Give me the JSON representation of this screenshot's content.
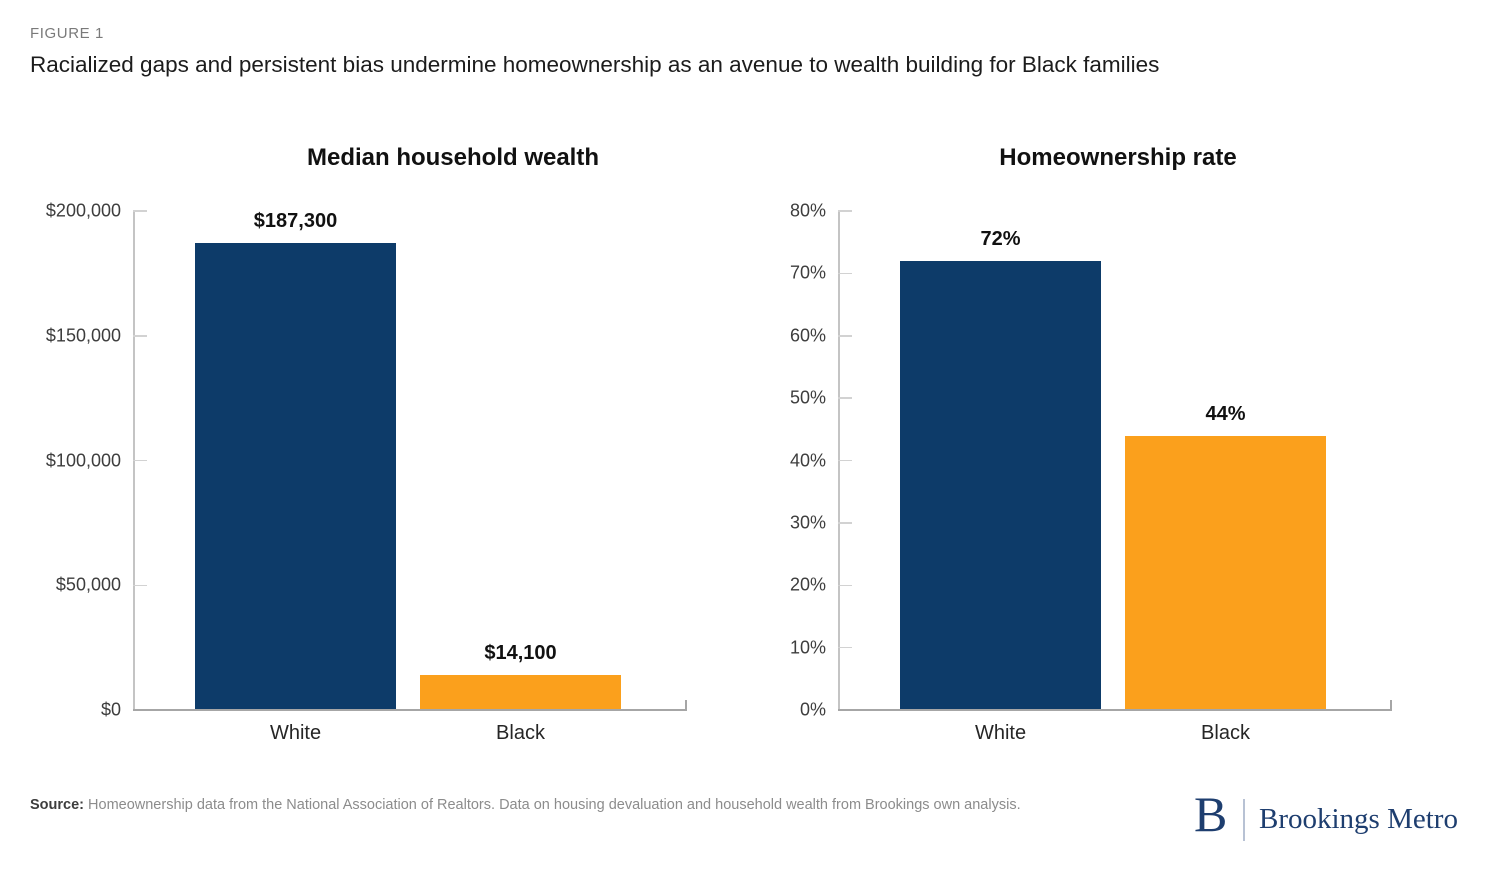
{
  "figure_label": "FIGURE 1",
  "title": "Racialized gaps and persistent bias undermine homeownership as an avenue to wealth building for Black families",
  "source": {
    "label": "Source:",
    "text": "Homeownership data from the National Association of Realtors. Data on housing devaluation and household wealth from Brookings own analysis."
  },
  "logo": {
    "initial": "B",
    "name": "Brookings Metro"
  },
  "colors": {
    "navy_bar": "#0d3b69",
    "orange_bar": "#fba01c",
    "logo_navy": "#1e3e6f",
    "axis_gray": "#c4c4c4",
    "baseline_gray": "#a6a6a6"
  },
  "chart_data": [
    {
      "type": "bar",
      "title": "Median household wealth",
      "categories": [
        "White",
        "Black"
      ],
      "values": [
        187300,
        14100
      ],
      "value_labels": [
        "$187,300",
        "$14,100"
      ],
      "bar_colors": [
        "#0d3b69",
        "#fba01c"
      ],
      "ylim": [
        0,
        200000
      ],
      "yticks": [
        {
          "value": 0,
          "label": "$0"
        },
        {
          "value": 50000,
          "label": "$50,000"
        },
        {
          "value": 100000,
          "label": "$100,000"
        },
        {
          "value": 150000,
          "label": "$150,000"
        },
        {
          "value": 200000,
          "label": "$200,000"
        }
      ],
      "grid": false,
      "legend": "none"
    },
    {
      "type": "bar",
      "title": "Homeownership rate",
      "categories": [
        "White",
        "Black"
      ],
      "values": [
        72,
        44
      ],
      "value_labels": [
        "72%",
        "44%"
      ],
      "bar_colors": [
        "#0d3b69",
        "#fba01c"
      ],
      "ylim": [
        0,
        80
      ],
      "yticks": [
        {
          "value": 0,
          "label": "0%"
        },
        {
          "value": 10,
          "label": "10%"
        },
        {
          "value": 20,
          "label": "20%"
        },
        {
          "value": 30,
          "label": "30%"
        },
        {
          "value": 40,
          "label": "40%"
        },
        {
          "value": 50,
          "label": "50%"
        },
        {
          "value": 60,
          "label": "60%"
        },
        {
          "value": 70,
          "label": "70%"
        },
        {
          "value": 80,
          "label": "80%"
        }
      ],
      "grid": false,
      "legend": "none"
    }
  ]
}
